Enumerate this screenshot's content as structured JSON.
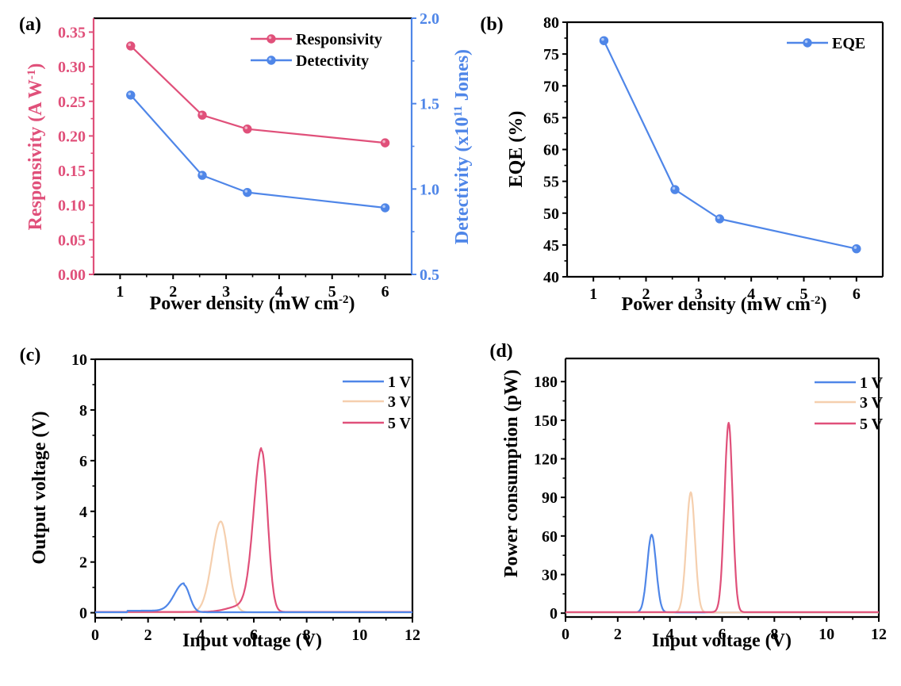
{
  "colors": {
    "responsivity": "#e0507a",
    "detectivity": "#4f86e8",
    "eqe": "#4f86e8",
    "v1": "#4f86e8",
    "v3": "#f5cfae",
    "v5": "#e0507a",
    "axis": "#000000"
  },
  "chart_data": [
    {
      "panel": "(a)",
      "type": "line",
      "xlabel": "Power density (mW cm⁻²)",
      "ylabel": "Responsivity (A W⁻¹)",
      "y2label": "Detectivity (x10¹¹ Jones)",
      "xlim": [
        0.5,
        6.5
      ],
      "ylim": [
        0,
        0.37
      ],
      "y2lim": [
        0.5,
        2.0
      ],
      "xticks": [
        "1",
        "2",
        "3",
        "4",
        "5",
        "6"
      ],
      "yticks": [
        "0.00",
        "0.05",
        "0.10",
        "0.15",
        "0.20",
        "0.25",
        "0.30",
        "0.35"
      ],
      "y2ticks": [
        "0.5",
        "1.0",
        "1.5",
        "2.0"
      ],
      "legend": "top-right",
      "x": [
        1.2,
        2.55,
        3.4,
        6.0
      ],
      "series": [
        {
          "name": "Responsivity",
          "axis": "left",
          "values": [
            0.33,
            0.23,
            0.21,
            0.19
          ]
        },
        {
          "name": "Detectivity",
          "axis": "right",
          "values": [
            1.55,
            1.08,
            0.98,
            0.89
          ]
        }
      ]
    },
    {
      "panel": "(b)",
      "type": "line",
      "xlabel": "Power density (mW cm⁻²)",
      "ylabel": "EQE (%)",
      "xlim": [
        0.5,
        6.5
      ],
      "ylim": [
        40,
        80
      ],
      "xticks": [
        "1",
        "2",
        "3",
        "4",
        "5",
        "6"
      ],
      "yticks": [
        "40",
        "45",
        "50",
        "55",
        "60",
        "65",
        "70",
        "75",
        "80"
      ],
      "legend": "top-right",
      "x": [
        1.2,
        2.55,
        3.4,
        6.0
      ],
      "series": [
        {
          "name": "EQE",
          "values": [
            77.1,
            53.7,
            49.1,
            44.4
          ]
        }
      ]
    },
    {
      "panel": "(c)",
      "type": "line",
      "xlabel": "Input voltage (V)",
      "ylabel": "Output voltage (V)",
      "xlim": [
        0,
        12
      ],
      "ylim": [
        -0.2,
        10
      ],
      "xticks": [
        "0",
        "2",
        "4",
        "6",
        "8",
        "10",
        "12"
      ],
      "yticks": [
        "0",
        "2",
        "4",
        "6",
        "8",
        "10"
      ],
      "legend": "top-right",
      "series": [
        {
          "name": "1 V",
          "peak_x": 3.35,
          "peak_y": 1.1
        },
        {
          "name": "3 V",
          "peak_x": 4.75,
          "peak_y": 3.6
        },
        {
          "name": "5 V",
          "peak_x": 6.3,
          "peak_y": 6.4
        }
      ]
    },
    {
      "panel": "(d)",
      "type": "line",
      "xlabel": "Input voltage (V)",
      "ylabel": "Power consumption (pW)",
      "xlim": [
        0,
        12
      ],
      "ylim": [
        -3,
        198
      ],
      "xticks": [
        "0",
        "2",
        "4",
        "6",
        "8",
        "10",
        "12"
      ],
      "yticks": [
        "0",
        "30",
        "60",
        "90",
        "120",
        "150",
        "180"
      ],
      "legend": "top-right",
      "series": [
        {
          "name": "1 V",
          "peak_x": 3.3,
          "peak_y": 61
        },
        {
          "name": "3 V",
          "peak_x": 4.8,
          "peak_y": 94
        },
        {
          "name": "5 V",
          "peak_x": 6.25,
          "peak_y": 148
        }
      ]
    }
  ]
}
